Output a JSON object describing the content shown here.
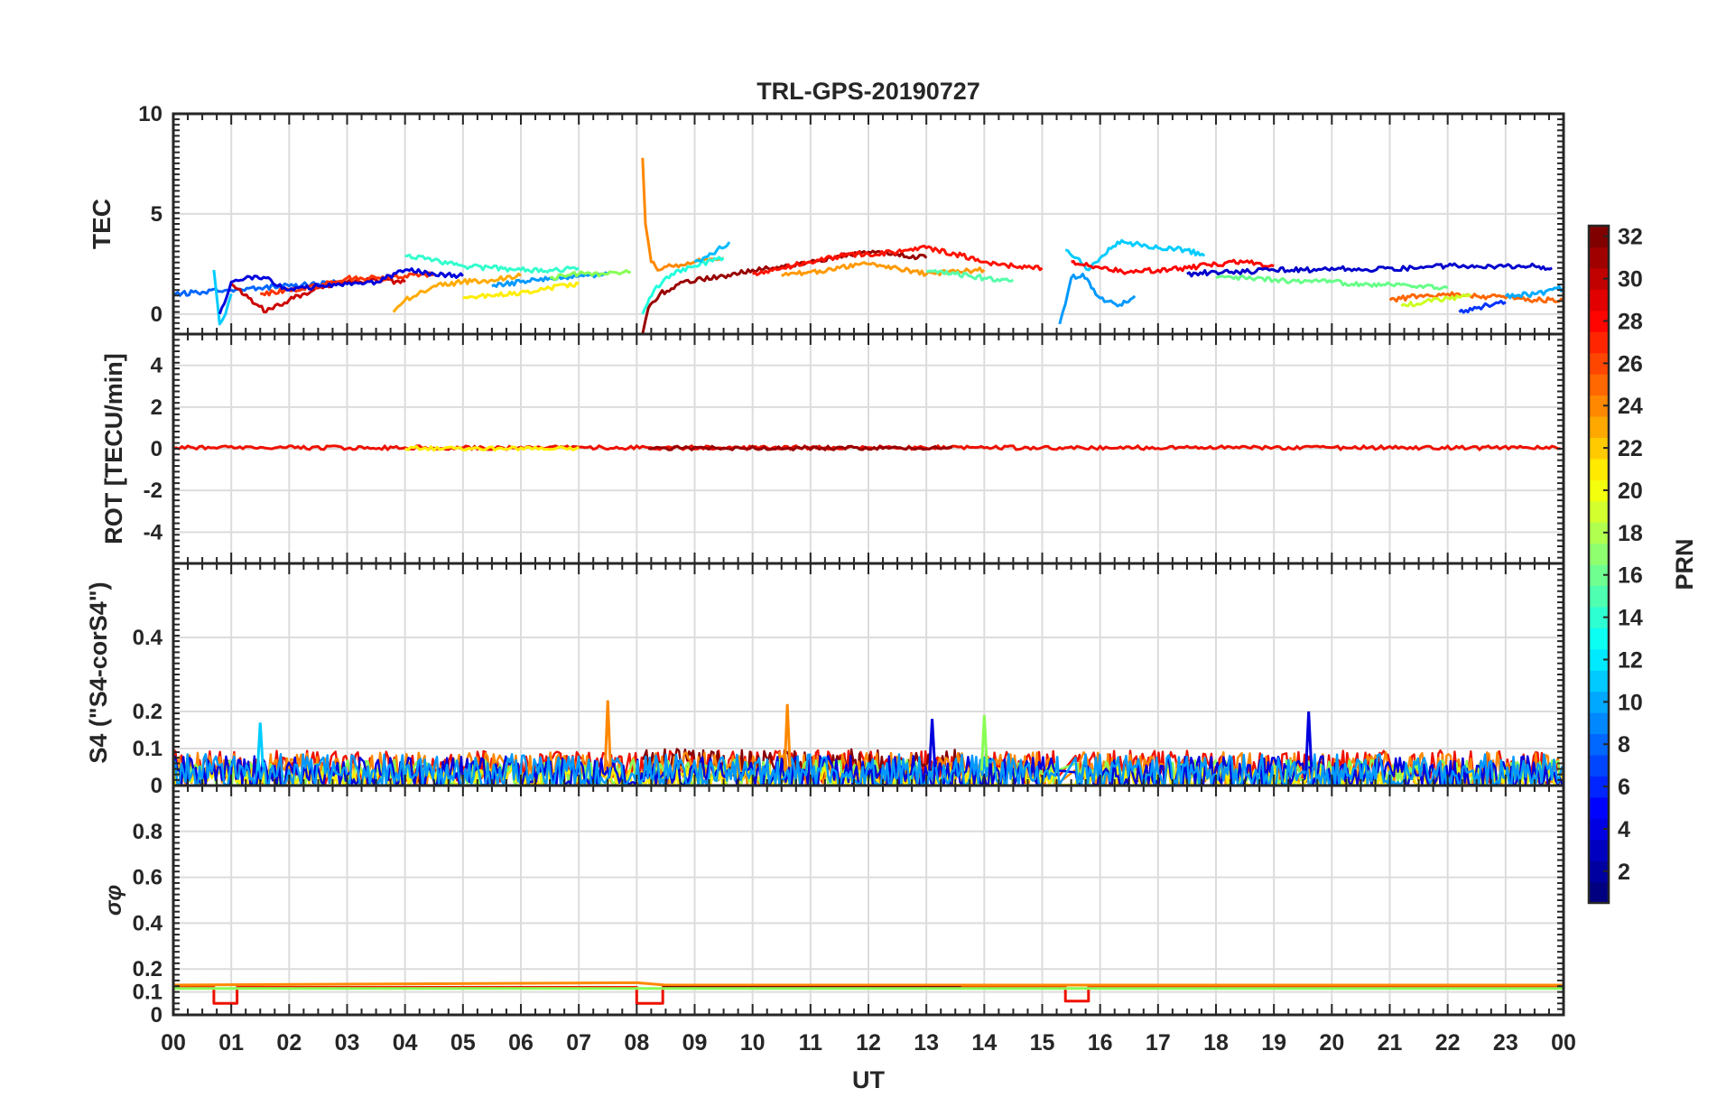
{
  "title": "TRL-GPS-20190727",
  "x_axis": {
    "label": "UT",
    "range": [
      0,
      24
    ],
    "tick_labels": [
      "00",
      "01",
      "02",
      "03",
      "04",
      "05",
      "06",
      "07",
      "08",
      "09",
      "10",
      "11",
      "12",
      "13",
      "14",
      "15",
      "16",
      "17",
      "18",
      "19",
      "20",
      "21",
      "22",
      "23",
      "00"
    ]
  },
  "colorbar": {
    "label": "PRN",
    "range": [
      1,
      32
    ],
    "tick_values": [
      2,
      4,
      6,
      8,
      10,
      12,
      14,
      16,
      18,
      20,
      22,
      24,
      26,
      28,
      30,
      32
    ],
    "tick_labels": [
      "2",
      "4",
      "6",
      "8",
      "10",
      "12",
      "14",
      "16",
      "18",
      "20",
      "22",
      "24",
      "26",
      "28",
      "30",
      "32"
    ],
    "colormap": "jet"
  },
  "chart_data": [
    {
      "type": "line",
      "panel": "TEC",
      "ylabel": "TEC",
      "ylim": [
        -1,
        10
      ],
      "y_ticks": [
        0,
        5,
        10
      ],
      "grid": true,
      "series": [
        {
          "prn": 8,
          "color": "#0066ff",
          "x": [
            0.0,
            0.5,
            1.0,
            1.5,
            2.0,
            2.5,
            3.0
          ],
          "y": [
            1.0,
            1.1,
            1.2,
            1.3,
            1.4,
            1.5,
            1.6
          ]
        },
        {
          "prn": 12,
          "color": "#00ccff",
          "x": [
            0.7,
            0.8,
            0.9,
            1.0
          ],
          "y": [
            2.2,
            -0.5,
            0.0,
            1.0
          ]
        },
        {
          "prn": 29,
          "color": "#cc0000",
          "x": [
            1.0,
            1.3,
            1.6,
            2.0,
            2.5,
            3.0,
            3.5,
            4.0
          ],
          "y": [
            1.5,
            0.8,
            0.1,
            0.7,
            1.3,
            1.6,
            1.7,
            1.6
          ]
        },
        {
          "prn": 26,
          "color": "#ff3300",
          "x": [
            1.5,
            2.0,
            2.5,
            3.0,
            3.5,
            4.0,
            4.5
          ],
          "y": [
            1.0,
            1.2,
            1.4,
            1.8,
            1.8,
            1.9,
            2.0
          ]
        },
        {
          "prn": 4,
          "color": "#0000dd",
          "x": [
            0.8,
            1.0,
            1.2,
            1.4,
            1.6,
            1.8,
            2.0,
            2.5,
            3.0,
            3.5,
            4.0,
            4.5,
            5.0
          ],
          "y": [
            0.0,
            1.6,
            1.7,
            1.9,
            1.8,
            1.4,
            1.2,
            1.4,
            1.5,
            1.6,
            2.2,
            2.0,
            1.9
          ]
        },
        {
          "prn": 14,
          "color": "#33ffcc",
          "x": [
            4.0,
            4.5,
            5.0,
            5.5,
            6.0,
            6.5,
            7.0
          ],
          "y": [
            2.9,
            2.7,
            2.4,
            2.3,
            2.2,
            2.2,
            2.3
          ]
        },
        {
          "prn": 22,
          "color": "#ffaa00",
          "x": [
            3.8,
            4.0,
            4.5,
            5.0,
            5.5,
            6.0
          ],
          "y": [
            0.1,
            0.7,
            1.4,
            1.6,
            1.7,
            1.9
          ]
        },
        {
          "prn": 20,
          "color": "#ffee00",
          "x": [
            5.0,
            5.5,
            6.0,
            6.5,
            7.0
          ],
          "y": [
            0.8,
            0.9,
            1.1,
            1.3,
            1.5
          ]
        },
        {
          "prn": 10,
          "color": "#0099ff",
          "x": [
            5.5,
            6.0,
            6.5,
            7.0,
            7.5
          ],
          "y": [
            1.4,
            1.6,
            1.8,
            1.9,
            2.0
          ]
        },
        {
          "prn": 17,
          "color": "#88ff55",
          "x": [
            6.5,
            7.0,
            7.5,
            7.9
          ],
          "y": [
            1.8,
            2.0,
            2.0,
            2.1
          ]
        },
        {
          "prn": 24,
          "color": "#ff8800",
          "x": [
            8.1,
            8.15,
            8.25,
            8.4,
            8.6,
            9.0,
            9.5
          ],
          "y": [
            7.8,
            4.5,
            2.6,
            2.2,
            2.4,
            2.6,
            2.8
          ]
        },
        {
          "prn": 31,
          "color": "#990000",
          "x": [
            8.1,
            8.2,
            8.4,
            8.8,
            9.5,
            10.0,
            10.5,
            11.0,
            11.5,
            12.0,
            12.5,
            13.0
          ],
          "y": [
            -1.0,
            0.3,
            1.0,
            1.6,
            1.9,
            2.2,
            2.4,
            2.6,
            2.9,
            3.1,
            3.0,
            2.8
          ]
        },
        {
          "prn": 13,
          "color": "#22ffdd",
          "x": [
            8.1,
            8.3,
            8.6,
            9.0,
            9.5
          ],
          "y": [
            0.0,
            1.2,
            2.0,
            2.4,
            2.8
          ]
        },
        {
          "prn": 9,
          "color": "#00bbff",
          "x": [
            9.0,
            9.3,
            9.6
          ],
          "y": [
            2.6,
            3.0,
            3.6
          ]
        },
        {
          "prn": 27,
          "color": "#ff1100",
          "x": [
            10.0,
            10.5,
            11.0,
            11.5,
            12.0,
            12.5,
            13.0,
            13.5,
            14.0,
            14.5,
            15.0
          ],
          "y": [
            2.0,
            2.3,
            2.6,
            2.9,
            3.0,
            3.1,
            3.3,
            3.0,
            2.6,
            2.4,
            2.3
          ]
        },
        {
          "prn": 23,
          "color": "#ff9900",
          "x": [
            10.5,
            11.0,
            11.5,
            12.0,
            12.5,
            13.0,
            13.5,
            14.0
          ],
          "y": [
            1.9,
            2.1,
            2.3,
            2.5,
            2.3,
            2.0,
            2.1,
            2.2
          ]
        },
        {
          "prn": 15,
          "color": "#55ffaa",
          "x": [
            13.0,
            13.5,
            14.0,
            14.5
          ],
          "y": [
            2.1,
            2.0,
            1.8,
            1.7
          ]
        },
        {
          "prn": 9,
          "color": "#0099ff",
          "x": [
            15.3,
            15.4,
            15.5,
            15.7,
            16.0,
            16.3,
            16.6
          ],
          "y": [
            -0.5,
            0.5,
            1.8,
            2.0,
            0.8,
            0.4,
            0.9
          ]
        },
        {
          "prn": 12,
          "color": "#00ccff",
          "x": [
            15.4,
            15.6,
            15.8,
            16.0,
            16.3,
            16.6,
            17.0,
            17.5,
            17.8
          ],
          "y": [
            3.2,
            2.8,
            2.2,
            2.8,
            3.6,
            3.5,
            3.3,
            3.2,
            2.9
          ]
        },
        {
          "prn": 28,
          "color": "#ff0000",
          "x": [
            15.5,
            15.8,
            16.0,
            16.5,
            17.0,
            17.5,
            18.0,
            18.5,
            19.0
          ],
          "y": [
            2.6,
            2.4,
            2.3,
            2.1,
            2.2,
            2.3,
            2.5,
            2.6,
            2.4
          ]
        },
        {
          "prn": 3,
          "color": "#0000cc",
          "x": [
            17.5,
            18.0,
            18.5,
            19.0,
            19.5,
            20.0,
            20.5,
            21.0,
            21.5,
            22.0,
            22.5,
            23.0,
            23.5,
            23.8
          ],
          "y": [
            2.0,
            2.1,
            2.1,
            2.2,
            2.2,
            2.3,
            2.2,
            2.3,
            2.3,
            2.4,
            2.4,
            2.4,
            2.4,
            2.3
          ]
        },
        {
          "prn": 16,
          "color": "#66ff88",
          "x": [
            18.0,
            18.5,
            19.0,
            19.5,
            20.0,
            20.5,
            21.0,
            21.5,
            22.0
          ],
          "y": [
            1.8,
            1.8,
            1.7,
            1.6,
            1.6,
            1.5,
            1.5,
            1.4,
            1.3
          ]
        },
        {
          "prn": 25,
          "color": "#ff6600",
          "x": [
            21.0,
            21.5,
            22.0,
            22.5,
            23.0,
            23.5,
            24.0
          ],
          "y": [
            0.7,
            0.9,
            1.0,
            0.9,
            0.8,
            0.7,
            0.7
          ]
        },
        {
          "prn": 19,
          "color": "#ccff22",
          "x": [
            21.2,
            21.6,
            22.0,
            22.4
          ],
          "y": [
            0.4,
            0.6,
            0.8,
            0.9
          ]
        },
        {
          "prn": 5,
          "color": "#0033ff",
          "x": [
            22.2,
            22.5,
            22.8,
            23.0
          ],
          "y": [
            0.1,
            0.3,
            0.5,
            0.6
          ]
        },
        {
          "prn": 11,
          "color": "#00aaff",
          "x": [
            23.0,
            23.5,
            24.0
          ],
          "y": [
            0.9,
            1.0,
            1.3
          ]
        }
      ]
    },
    {
      "type": "line",
      "panel": "ROT",
      "ylabel": "ROT [TECU/min]",
      "ylim": [
        -5.5,
        5.5
      ],
      "y_ticks": [
        -4,
        -2,
        0,
        2,
        4
      ],
      "grid": true,
      "series": [
        {
          "prn": 28,
          "color": "#ee1100",
          "x": [
            0,
            24
          ],
          "y": [
            0.05,
            0.05
          ]
        },
        {
          "prn": 31,
          "color": "#990000",
          "x": [
            8.2,
            13.5
          ],
          "y": [
            0.03,
            0.03
          ]
        },
        {
          "prn": 20,
          "color": "#ffee00",
          "x": [
            4.0,
            7.0
          ],
          "y": [
            0.02,
            0.02
          ]
        }
      ]
    },
    {
      "type": "line",
      "panel": "S4",
      "ylabel": "S4 (\"S4-corS4\")",
      "ylim": [
        0,
        0.6
      ],
      "y_ticks": [
        0,
        0.1,
        0.2,
        0.4
      ],
      "grid": true,
      "series": [
        {
          "prn": 28,
          "color": "#ee1100",
          "x_range": [
            0.0,
            24.0
          ],
          "mean": 0.05,
          "amplitude": 0.045
        },
        {
          "prn": 31,
          "color": "#880000",
          "x_range": [
            8.1,
            13.6
          ],
          "mean": 0.055,
          "amplitude": 0.045
        },
        {
          "prn": 24,
          "color": "#ff8800",
          "x_range": [
            0.0,
            24.0
          ],
          "mean": 0.04,
          "amplitude": 0.05
        },
        {
          "prn": 17,
          "color": "#88ff55",
          "x_range": [
            0.0,
            24.0
          ],
          "mean": 0.03,
          "amplitude": 0.04
        },
        {
          "prn": 20,
          "color": "#ffee00",
          "x_range": [
            0.0,
            24.0
          ],
          "mean": 0.02,
          "amplitude": 0.03
        },
        {
          "prn": 4,
          "color": "#0000dd",
          "x_range": [
            0.0,
            24.0
          ],
          "mean": 0.03,
          "amplitude": 0.05
        },
        {
          "prn": 10,
          "color": "#0099ff",
          "x_range": [
            0.0,
            24.0
          ],
          "mean": 0.035,
          "amplitude": 0.05
        }
      ],
      "peaks": [
        {
          "x": 7.5,
          "y": 0.23,
          "color": "#ff8800"
        },
        {
          "x": 10.6,
          "y": 0.22,
          "color": "#ff8800"
        },
        {
          "x": 19.6,
          "y": 0.2,
          "color": "#0000dd"
        },
        {
          "x": 13.1,
          "y": 0.18,
          "color": "#0000dd"
        },
        {
          "x": 14.0,
          "y": 0.19,
          "color": "#88ff55"
        },
        {
          "x": 1.5,
          "y": 0.17,
          "color": "#00ccff"
        }
      ]
    },
    {
      "type": "line",
      "panel": "sigma_phi",
      "ylabel": "σφ",
      "ylim": [
        0,
        1.0
      ],
      "y_ticks": [
        0,
        0.1,
        0.2,
        0.4,
        0.6,
        0.8
      ],
      "grid": true,
      "series": [
        {
          "prn": 28,
          "color": "#ee1100",
          "x": [
            0.0,
            0.7,
            0.7,
            1.1,
            1.1,
            8.0,
            8.0,
            8.45,
            8.45,
            15.4,
            15.4,
            15.8,
            15.8,
            24.0
          ],
          "y": [
            0.12,
            0.12,
            0.05,
            0.05,
            0.12,
            0.12,
            0.05,
            0.05,
            0.12,
            0.12,
            0.06,
            0.06,
            0.12,
            0.12
          ]
        },
        {
          "prn": 24,
          "color": "#ff8800",
          "x": [
            0.0,
            8.0,
            8.5,
            24.0
          ],
          "y": [
            0.13,
            0.14,
            0.13,
            0.13
          ]
        },
        {
          "prn": 31,
          "color": "#880000",
          "x": [
            8.45,
            13.6
          ],
          "y": [
            0.12,
            0.12
          ]
        },
        {
          "prn": 17,
          "color": "#88ff55",
          "x": [
            0.0,
            24.0
          ],
          "y": [
            0.115,
            0.115
          ]
        }
      ]
    }
  ]
}
